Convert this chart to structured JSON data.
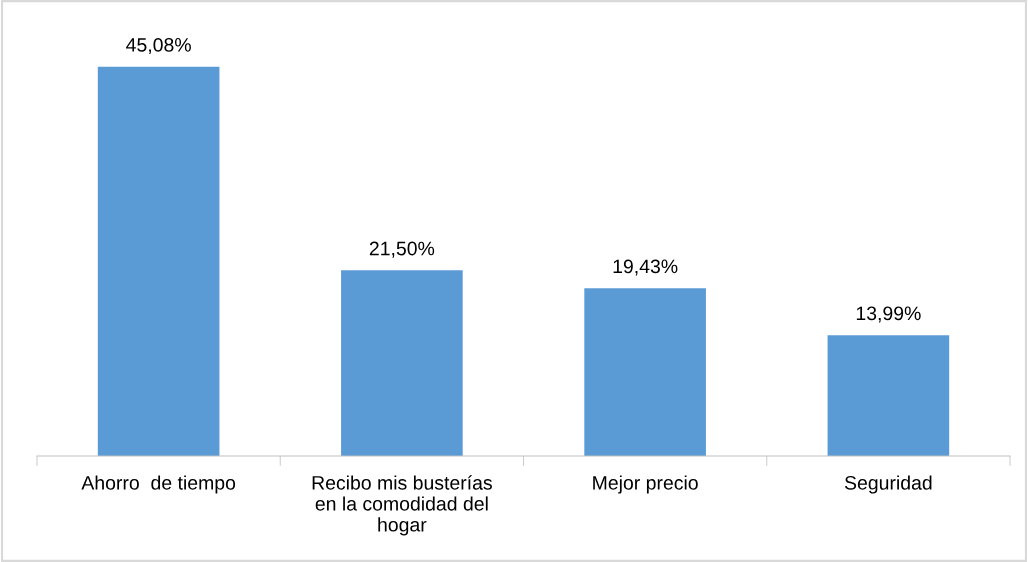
{
  "chart_data": {
    "type": "bar",
    "categories": [
      "Ahorro  de tiempo",
      "Recibo mis busterías en la comodidad del hogar",
      "Mejor precio",
      "Seguridad"
    ],
    "values": [
      45.08,
      21.5,
      19.43,
      13.99
    ],
    "value_labels": [
      "45,08%",
      "21,50%",
      "19,43%",
      "13,99%"
    ],
    "color": "#5b9bd5",
    "grid": false,
    "legend": false
  }
}
